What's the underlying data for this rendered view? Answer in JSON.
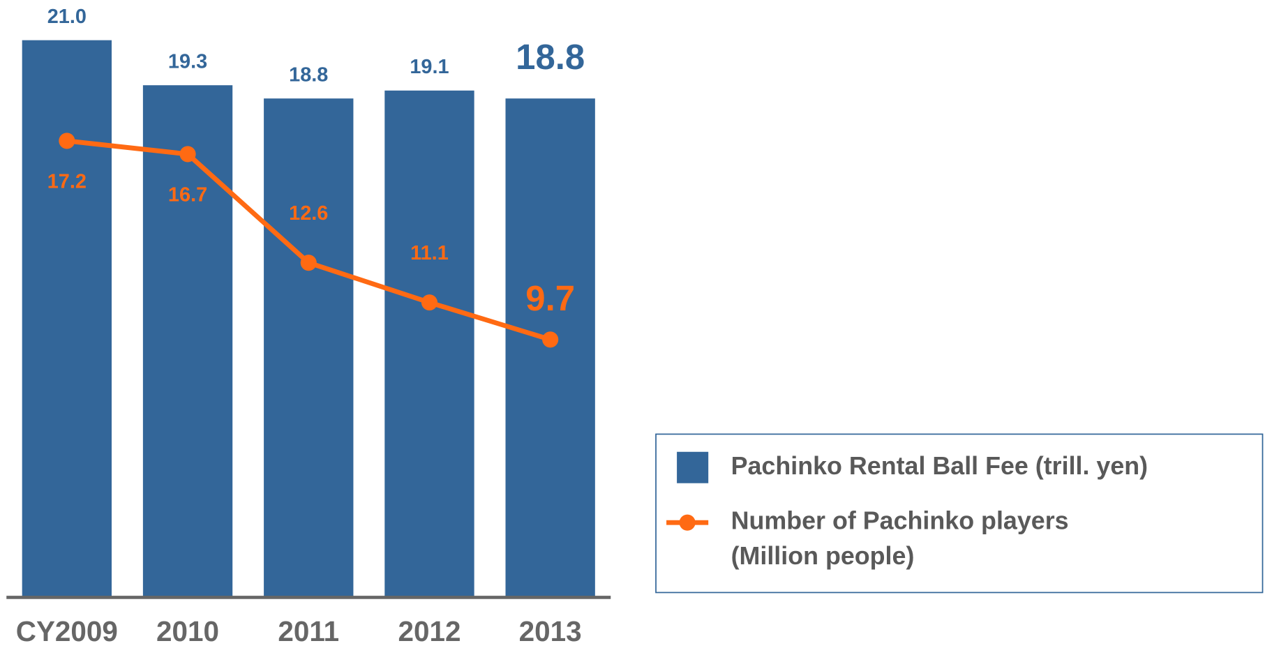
{
  "chart_data": {
    "type": "bar-line",
    "categories": [
      "CY2009",
      "2010",
      "2011",
      "2012",
      "2013"
    ],
    "series": [
      {
        "name": "Pachinko Rental Ball Fee (trill. yen)",
        "type": "bar",
        "color": "#336699",
        "values": [
          21.0,
          19.3,
          18.8,
          19.1,
          18.8
        ],
        "value_labels": [
          "21.0",
          "19.3",
          "18.8",
          "19.1",
          "18.8"
        ]
      },
      {
        "name": "Number of Pachinko players (Million people)",
        "type": "line",
        "color": "#ff6a13",
        "values": [
          17.2,
          16.7,
          12.6,
          11.1,
          9.7
        ],
        "value_labels": [
          "17.2",
          "16.7",
          "12.6",
          "11.1",
          "9.7"
        ]
      }
    ],
    "ylim": [
      0,
      21.0
    ]
  }
}
